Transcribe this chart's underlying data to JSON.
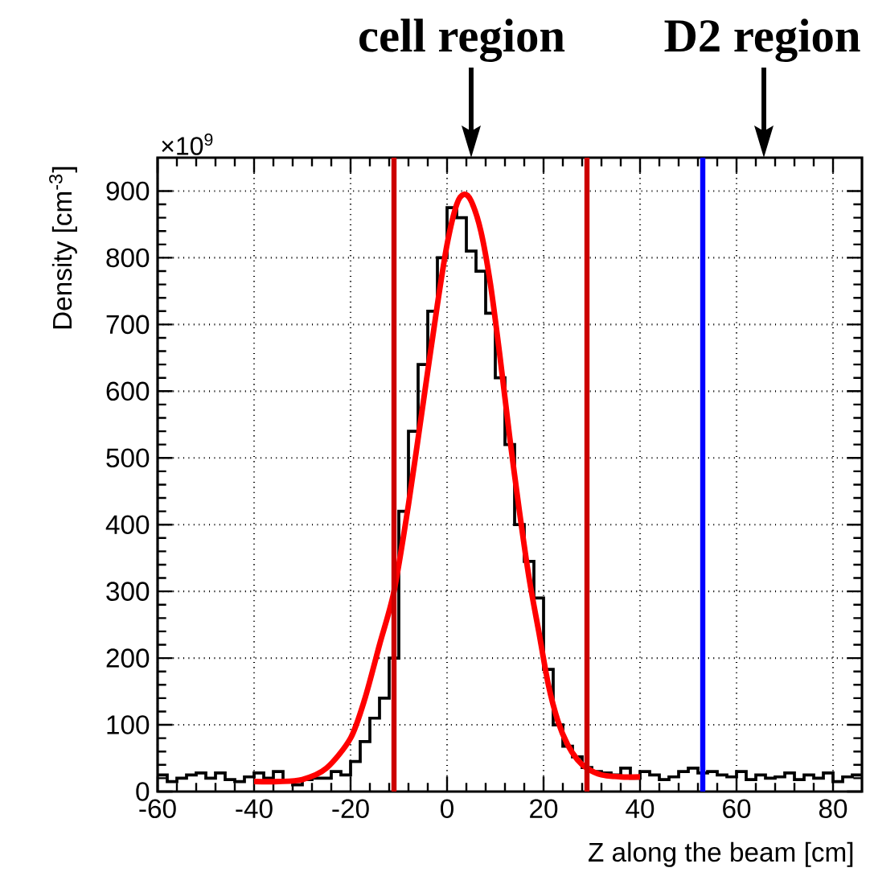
{
  "chart_data": {
    "type": "histogram",
    "xlabel": "Z along the beam [cm]",
    "ylabel": "Density [cm$^{-3}$]",
    "annotations": [
      "cell region",
      "D2 region",
      "×10$^{9}$"
    ],
    "series": [
      {
        "type": "histogram",
        "color": "#000000",
        "bins": [
          -60,
          -58,
          -56,
          -54,
          -52,
          -50,
          -48,
          -46,
          -44,
          -42,
          -40,
          -38,
          -36,
          -34,
          -32,
          -30,
          -28,
          -26,
          -24,
          -22,
          -20,
          -18,
          -16,
          -14,
          -12,
          -10,
          -8,
          -6,
          -4,
          -2,
          0,
          2,
          4,
          6,
          8,
          10,
          12,
          14,
          16,
          18,
          20,
          22,
          24,
          26,
          28,
          30,
          32,
          34,
          36,
          38,
          40,
          42,
          44,
          46,
          48,
          50,
          52,
          54,
          56,
          58,
          60,
          62,
          64,
          66,
          68,
          70,
          72,
          74,
          76,
          78,
          80,
          82,
          84,
          86
        ],
        "values": [
          25,
          15,
          20,
          25,
          28,
          20,
          28,
          18,
          15,
          22,
          28,
          20,
          30,
          15,
          10,
          18,
          20,
          20,
          30,
          25,
          45,
          75,
          110,
          140,
          200,
          420,
          540,
          640,
          720,
          800,
          875,
          860,
          810,
          780,
          717,
          620,
          520,
          400,
          345,
          290,
          183,
          100,
          68,
          52,
          36,
          30,
          28,
          25,
          35,
          20,
          30,
          25,
          18,
          22,
          30,
          35,
          28,
          30,
          25,
          22,
          30,
          18,
          25,
          20,
          22,
          28,
          18,
          25,
          20,
          28,
          15,
          22,
          25
        ]
      },
      {
        "type": "line",
        "color": "#ff0000",
        "x": [
          -40,
          -35,
          -30,
          -25,
          -20,
          -17,
          -14,
          -11,
          -8,
          -5,
          -2,
          0,
          2,
          3.5,
          5,
          7,
          9,
          11,
          13,
          15,
          17,
          19,
          21,
          23,
          25,
          27,
          29,
          32,
          36,
          40
        ],
        "values": [
          15,
          15,
          18,
          35,
          80,
          140,
          220,
          300,
          430,
          580,
          730,
          820,
          880,
          895,
          885,
          840,
          760,
          650,
          530,
          420,
          320,
          240,
          160,
          105,
          70,
          48,
          35,
          25,
          22,
          22
        ]
      }
    ],
    "xlim": [
      -60,
      86
    ],
    "xticks": [
      -60,
      -40,
      -20,
      0,
      20,
      40,
      60,
      80
    ],
    "ylim": [
      0,
      950
    ],
    "yticks": [
      0,
      100,
      200,
      300,
      400,
      500,
      600,
      700,
      800,
      900
    ],
    "grid": true,
    "ref_lines": [
      {
        "axis": "x",
        "value": -11,
        "color": "#cc0000"
      },
      {
        "axis": "x",
        "value": 29,
        "color": "#cc0000"
      },
      {
        "axis": "x",
        "value": 53,
        "color": "#0000ff"
      }
    ]
  }
}
